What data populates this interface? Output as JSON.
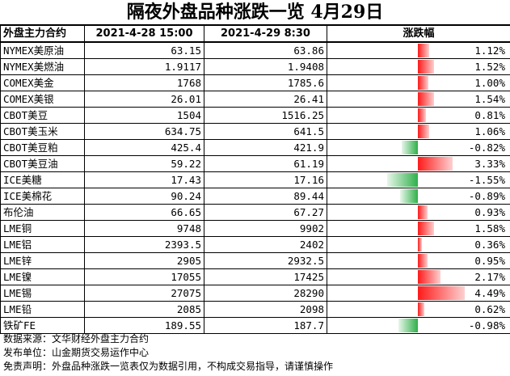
{
  "title": "隔夜外盘品种涨跌一览 4月29日",
  "headers": {
    "name": "外盘主力合约",
    "prev": "2021-4-28 15:00",
    "curr": "2021-4-29 8:30",
    "change": "涨跌幅"
  },
  "rows": [
    {
      "name": "NYMEX美原油",
      "prev": "63.15",
      "curr": "63.86",
      "change": "1.12%",
      "pct": 1.12
    },
    {
      "name": "NYMEX美燃油",
      "prev": "1.9117",
      "curr": "1.9408",
      "change": "1.52%",
      "pct": 1.52
    },
    {
      "name": "COMEX美金",
      "prev": "1768",
      "curr": "1785.6",
      "change": "1.00%",
      "pct": 1.0
    },
    {
      "name": "COMEX美银",
      "prev": "26.01",
      "curr": "26.41",
      "change": "1.54%",
      "pct": 1.54
    },
    {
      "name": "CBOT美豆",
      "prev": "1504",
      "curr": "1516.25",
      "change": "0.81%",
      "pct": 0.81
    },
    {
      "name": "CBOT美玉米",
      "prev": "634.75",
      "curr": "641.5",
      "change": "1.06%",
      "pct": 1.06
    },
    {
      "name": "CBOT美豆粕",
      "prev": "425.4",
      "curr": "421.9",
      "change": "-0.82%",
      "pct": -0.82
    },
    {
      "name": "CBOT美豆油",
      "prev": "59.22",
      "curr": "61.19",
      "change": "3.33%",
      "pct": 3.33
    },
    {
      "name": "ICE美糖",
      "prev": "17.43",
      "curr": "17.16",
      "change": "-1.55%",
      "pct": -1.55
    },
    {
      "name": "ICE美棉花",
      "prev": "90.24",
      "curr": "89.44",
      "change": "-0.89%",
      "pct": -0.89
    },
    {
      "name": "布伦油",
      "prev": "66.65",
      "curr": "67.27",
      "change": "0.93%",
      "pct": 0.93
    },
    {
      "name": "LME铜",
      "prev": "9748",
      "curr": "9902",
      "change": "1.58%",
      "pct": 1.58
    },
    {
      "name": "LME铝",
      "prev": "2393.5",
      "curr": "2402",
      "change": "0.36%",
      "pct": 0.36
    },
    {
      "name": "LME锌",
      "prev": "2905",
      "curr": "2932.5",
      "change": "0.95%",
      "pct": 0.95
    },
    {
      "name": "LME镍",
      "prev": "17055",
      "curr": "17425",
      "change": "2.17%",
      "pct": 2.17
    },
    {
      "name": "LME锡",
      "prev": "27075",
      "curr": "28290",
      "change": "4.49%",
      "pct": 4.49
    },
    {
      "name": "LME铅",
      "prev": "2085",
      "curr": "2098",
      "change": "0.62%",
      "pct": 0.62
    },
    {
      "name": "铁矿FE",
      "prev": "189.55",
      "curr": "187.7",
      "change": "-0.98%",
      "pct": -0.98
    }
  ],
  "footer": {
    "source": "数据来源：文华财经外盘主力合约",
    "publisher": "发布单位：山金期货交易运作中心",
    "disclaimer": "免责声明：外盘品种涨跌一览表仅为数据引用，不构成交易指导，请谨慎操作"
  },
  "colors": {
    "up": "#ff1a1a",
    "down": "#2eb049"
  }
}
